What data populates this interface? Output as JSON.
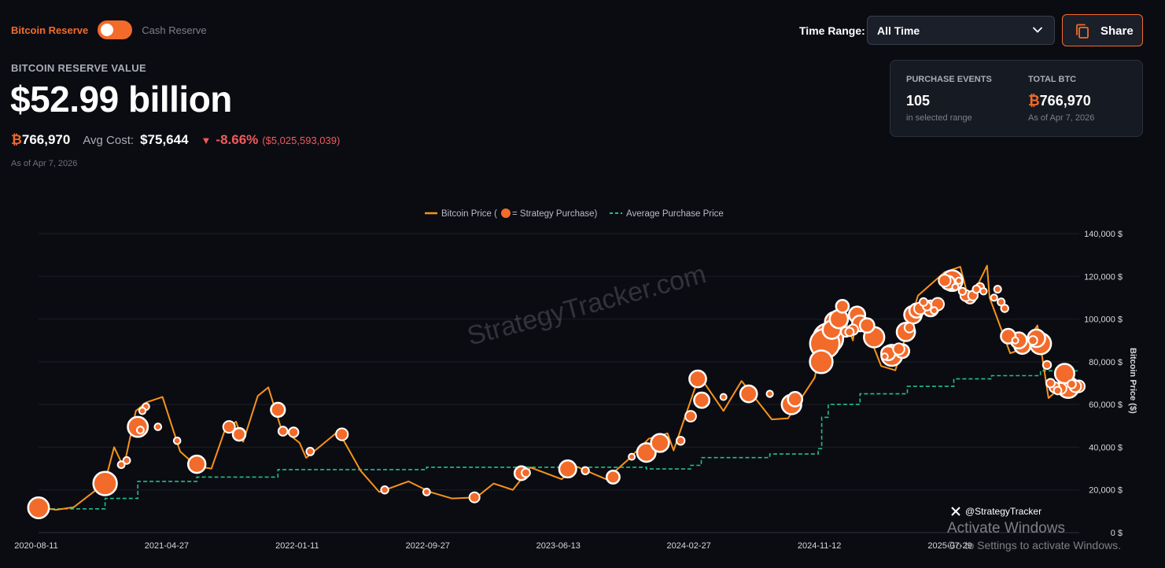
{
  "toggle": {
    "left_label": "Bitcoin Reserve",
    "right_label": "Cash Reserve",
    "on": true
  },
  "header": {
    "eyebrow": "BITCOIN RESERVE VALUE",
    "value": "$52.99 billion",
    "btc_symbol": "₿",
    "btc_amount": "766,970",
    "avg_cost_label": "Avg Cost:",
    "avg_cost_value": "$75,644",
    "change_icon": "down-triangle-icon",
    "change_pct": "-8.66%",
    "change_amount": "($5,025,593,039)",
    "as_of": "As of Apr 7, 2026"
  },
  "controls": {
    "time_range_label": "Time Range:",
    "time_range_value": "All Time",
    "share_label": "Share"
  },
  "stats_card": {
    "events_label": "PURCHASE EVENTS",
    "events_value": "105",
    "events_sub": "in selected range",
    "btc_label": "TOTAL BTC",
    "btc_symbol": "₿",
    "btc_value": "766,970",
    "btc_sub": "As of Apr 7, 2026"
  },
  "colors": {
    "accent": "#f26b2a",
    "price_line": "#f7931a",
    "avg_line": "#1fc08a",
    "negative": "#f05b5b",
    "bg": "#0b0c12"
  },
  "watermark": "StrategyTracker.com",
  "social": {
    "icon": "x-logo-icon",
    "handle": "@StrategyTracker"
  },
  "overlay": {
    "line1": "Activate Windows",
    "line2": "Go to Settings to activate Windows."
  },
  "chart_data": {
    "type": "line",
    "legend": [
      "Bitcoin Price (",
      " = Strategy Purchase)",
      "Average Purchase Price"
    ],
    "ylabel": "Bitcoin Price ($)",
    "ylim": [
      0,
      140000
    ],
    "y_ticks": [
      0,
      20000,
      40000,
      60000,
      80000,
      100000,
      120000,
      140000
    ],
    "y_tick_labels": [
      "0 $",
      "20,000 $",
      "40,000 $",
      "60,000 $",
      "80,000 $",
      "100,000 $",
      "120,000 $",
      "140,000 $"
    ],
    "x_range": [
      "2020-08-11",
      "2026-04-07"
    ],
    "x_ticks": [
      "2020-08-11",
      "2021-04-27",
      "2022-01-11",
      "2022-09-27",
      "2023-06-13",
      "2024-02-27",
      "2024-11-12",
      "2025-07-29"
    ],
    "grid": true,
    "legend_position": "top-center",
    "series": [
      {
        "name": "Bitcoin Price",
        "x": [
          "2020-08-11",
          "2020-09-15",
          "2020-10-20",
          "2020-11-25",
          "2020-12-20",
          "2021-01-08",
          "2021-01-27",
          "2021-02-20",
          "2021-03-13",
          "2021-04-14",
          "2021-05-19",
          "2021-06-21",
          "2021-07-20",
          "2021-08-15",
          "2021-09-07",
          "2021-09-21",
          "2021-10-20",
          "2021-11-10",
          "2021-12-05",
          "2022-01-11",
          "2022-01-24",
          "2022-03-29",
          "2022-05-12",
          "2022-06-18",
          "2022-08-15",
          "2022-09-27",
          "2022-11-09",
          "2022-12-28",
          "2023-01-31",
          "2023-03-10",
          "2023-04-14",
          "2023-06-15",
          "2023-07-14",
          "2023-09-11",
          "2023-10-24",
          "2023-12-05",
          "2024-01-11",
          "2024-01-23",
          "2024-03-14",
          "2024-05-01",
          "2024-06-06",
          "2024-08-05",
          "2024-09-06",
          "2024-10-29",
          "2024-11-12",
          "2024-12-17",
          "2025-01-13",
          "2025-01-22",
          "2025-03-10",
          "2025-04-07",
          "2025-05-22",
          "2025-07-14",
          "2025-08-14",
          "2025-09-01",
          "2025-10-06",
          "2025-10-11",
          "2025-11-21",
          "2025-12-15",
          "2026-01-14",
          "2026-02-05",
          "2026-03-10",
          "2026-04-07"
        ],
        "values": [
          11800,
          10700,
          11900,
          18500,
          23000,
          40000,
          30500,
          57000,
          61000,
          63500,
          38000,
          31000,
          30000,
          47500,
          52000,
          42500,
          64000,
          68000,
          49000,
          42000,
          35000,
          47500,
          29000,
          19000,
          24000,
          19000,
          16000,
          16500,
          23000,
          20000,
          30500,
          25000,
          31000,
          25000,
          34000,
          44000,
          46500,
          38500,
          73500,
          57000,
          71000,
          53000,
          53500,
          72500,
          88000,
          107000,
          90000,
          106000,
          78000,
          76000,
          111000,
          122000,
          124500,
          108000,
          125000,
          110000,
          84000,
          86000,
          97000,
          63000,
          70000,
          69000
        ]
      },
      {
        "name": "Average Purchase Price",
        "x": [
          "2020-08-11",
          "2020-12-21",
          "2021-02-24",
          "2021-06-21",
          "2021-11-29",
          "2022-09-20",
          "2023-11-30",
          "2024-02-26",
          "2024-03-18",
          "2024-08-01",
          "2024-11-05",
          "2024-11-12",
          "2024-11-25",
          "2025-01-27",
          "2025-05-01",
          "2025-08-01",
          "2025-10-15",
          "2026-01-20",
          "2026-04-07"
        ],
        "values": [
          11111,
          16000,
          24000,
          26000,
          29500,
          30600,
          29800,
          31500,
          35100,
          36800,
          39300,
          54000,
          60000,
          65000,
          68500,
          72000,
          73500,
          75800,
          75644
        ]
      }
    ],
    "purchases": [
      {
        "x": "2020-08-11",
        "y": 11600,
        "btc": 21454
      },
      {
        "x": "2020-12-21",
        "y": 23000,
        "btc": 29646
      },
      {
        "x": "2021-01-22",
        "y": 31800,
        "btc": 314
      },
      {
        "x": "2021-02-02",
        "y": 33800,
        "btc": 295
      },
      {
        "x": "2021-02-24",
        "y": 49500,
        "btc": 19452
      },
      {
        "x": "2021-03-01",
        "y": 48000,
        "btc": 328
      },
      {
        "x": "2021-03-05",
        "y": 57000,
        "btc": 205
      },
      {
        "x": "2021-03-12",
        "y": 59000,
        "btc": 262
      },
      {
        "x": "2021-04-05",
        "y": 49500,
        "btc": 253
      },
      {
        "x": "2021-05-13",
        "y": 43000,
        "btc": 271
      },
      {
        "x": "2021-06-21",
        "y": 32000,
        "btc": 13005
      },
      {
        "x": "2021-08-24",
        "y": 49500,
        "btc": 3907
      },
      {
        "x": "2021-09-13",
        "y": 46000,
        "btc": 5050
      },
      {
        "x": "2021-11-29",
        "y": 57500,
        "btc": 7002
      },
      {
        "x": "2021-12-09",
        "y": 47500,
        "btc": 1434
      },
      {
        "x": "2021-12-30",
        "y": 47000,
        "btc": 1914
      },
      {
        "x": "2022-02-01",
        "y": 38000,
        "btc": 660
      },
      {
        "x": "2022-04-05",
        "y": 46000,
        "btc": 4167
      },
      {
        "x": "2022-06-29",
        "y": 20000,
        "btc": 480
      },
      {
        "x": "2022-09-20",
        "y": 19000,
        "btc": 301
      },
      {
        "x": "2022-12-24",
        "y": 16500,
        "btc": 2395
      },
      {
        "x": "2023-03-27",
        "y": 27800,
        "btc": 6455
      },
      {
        "x": "2023-04-05",
        "y": 28000,
        "btc": 1045
      },
      {
        "x": "2023-06-27",
        "y": 29800,
        "btc": 12333
      },
      {
        "x": "2023-08-01",
        "y": 29000,
        "btc": 467
      },
      {
        "x": "2023-09-25",
        "y": 26000,
        "btc": 5445
      },
      {
        "x": "2023-11-01",
        "y": 35500,
        "btc": 155
      },
      {
        "x": "2023-11-30",
        "y": 37500,
        "btc": 16130
      },
      {
        "x": "2023-12-27",
        "y": 42000,
        "btc": 14620
      },
      {
        "x": "2024-02-06",
        "y": 43000,
        "btc": 850
      },
      {
        "x": "2024-02-26",
        "y": 54500,
        "btc": 3000
      },
      {
        "x": "2024-03-11",
        "y": 72000,
        "btc": 12000
      },
      {
        "x": "2024-03-19",
        "y": 62000,
        "btc": 9245
      },
      {
        "x": "2024-05-01",
        "y": 63500,
        "btc": 122
      },
      {
        "x": "2024-06-20",
        "y": 65000,
        "btc": 11931
      },
      {
        "x": "2024-08-01",
        "y": 65000,
        "btc": 169
      },
      {
        "x": "2024-09-13",
        "y": 60000,
        "btc": 18300
      },
      {
        "x": "2024-09-20",
        "y": 62500,
        "btc": 7420
      },
      {
        "x": "2024-11-11",
        "y": 80000,
        "btc": 27200
      },
      {
        "x": "2024-11-18",
        "y": 88500,
        "btc": 51780
      },
      {
        "x": "2024-11-25",
        "y": 91000,
        "btc": 55500
      },
      {
        "x": "2024-12-02",
        "y": 95000,
        "btc": 15400
      },
      {
        "x": "2024-12-09",
        "y": 98500,
        "btc": 21550
      },
      {
        "x": "2024-12-16",
        "y": 100000,
        "btc": 15350
      },
      {
        "x": "2024-12-23",
        "y": 106000,
        "btc": 5262
      },
      {
        "x": "2024-12-30",
        "y": 94000,
        "btc": 2138
      },
      {
        "x": "2025-01-06",
        "y": 94000,
        "btc": 1070
      },
      {
        "x": "2025-01-13",
        "y": 95000,
        "btc": 2530
      },
      {
        "x": "2025-01-21",
        "y": 102000,
        "btc": 11000
      },
      {
        "x": "2025-01-27",
        "y": 98000,
        "btc": 10107
      },
      {
        "x": "2025-02-10",
        "y": 97000,
        "btc": 7633
      },
      {
        "x": "2025-02-24",
        "y": 91500,
        "btc": 20356
      },
      {
        "x": "2025-03-17",
        "y": 82500,
        "btc": 130
      },
      {
        "x": "2025-03-24",
        "y": 84000,
        "btc": 6911
      },
      {
        "x": "2025-03-31",
        "y": 83000,
        "btc": 22048
      },
      {
        "x": "2025-04-14",
        "y": 86000,
        "btc": 3459
      },
      {
        "x": "2025-04-21",
        "y": 85000,
        "btc": 6556
      },
      {
        "x": "2025-04-28",
        "y": 94000,
        "btc": 15355
      },
      {
        "x": "2025-05-05",
        "y": 96000,
        "btc": 1895
      },
      {
        "x": "2025-05-12",
        "y": 102000,
        "btc": 13390
      },
      {
        "x": "2025-05-19",
        "y": 104000,
        "btc": 7390
      },
      {
        "x": "2025-05-26",
        "y": 105000,
        "btc": 4020
      },
      {
        "x": "2025-06-02",
        "y": 108000,
        "btc": 705
      },
      {
        "x": "2025-06-09",
        "y": 106000,
        "btc": 1045
      },
      {
        "x": "2025-06-16",
        "y": 105000,
        "btc": 10100
      },
      {
        "x": "2025-06-23",
        "y": 104000,
        "btc": 245
      },
      {
        "x": "2025-06-30",
        "y": 107000,
        "btc": 4980
      },
      {
        "x": "2025-07-14",
        "y": 118000,
        "btc": 4225
      },
      {
        "x": "2025-07-21",
        "y": 117000,
        "btc": 6220
      },
      {
        "x": "2025-07-29",
        "y": 118000,
        "btc": 21021
      },
      {
        "x": "2025-08-04",
        "y": 115000,
        "btc": 21
      },
      {
        "x": "2025-08-11",
        "y": 118000,
        "btc": 155
      },
      {
        "x": "2025-08-18",
        "y": 113000,
        "btc": 430
      },
      {
        "x": "2025-08-25",
        "y": 111000,
        "btc": 3081
      },
      {
        "x": "2025-09-02",
        "y": 110000,
        "btc": 4048
      },
      {
        "x": "2025-09-08",
        "y": 111000,
        "btc": 1955
      },
      {
        "x": "2025-09-15",
        "y": 114000,
        "btc": 525
      },
      {
        "x": "2025-09-22",
        "y": 115000,
        "btc": 850
      },
      {
        "x": "2025-09-29",
        "y": 113000,
        "btc": 196
      },
      {
        "x": "2025-10-20",
        "y": 110000,
        "btc": 168
      },
      {
        "x": "2025-10-27",
        "y": 114000,
        "btc": 390
      },
      {
        "x": "2025-11-03",
        "y": 108000,
        "btc": 397
      },
      {
        "x": "2025-11-10",
        "y": 105000,
        "btc": 487
      },
      {
        "x": "2025-11-17",
        "y": 92000,
        "btc": 8178
      },
      {
        "x": "2025-12-01",
        "y": 90000,
        "btc": 130
      },
      {
        "x": "2025-12-08",
        "y": 90000,
        "btc": 10624
      },
      {
        "x": "2025-12-15",
        "y": 87500,
        "btc": 10645
      },
      {
        "x": "2026-01-05",
        "y": 90000,
        "btc": 1287
      },
      {
        "x": "2026-01-12",
        "y": 91000,
        "btc": 13627
      },
      {
        "x": "2026-01-20",
        "y": 88500,
        "btc": 22305
      },
      {
        "x": "2026-02-02",
        "y": 78500,
        "btc": 855
      },
      {
        "x": "2026-02-09",
        "y": 70000,
        "btc": 1142
      },
      {
        "x": "2026-02-17",
        "y": 68000,
        "btc": 2486
      },
      {
        "x": "2026-02-23",
        "y": 66500,
        "btc": 592
      },
      {
        "x": "2026-03-02",
        "y": 67500,
        "btc": 3015
      },
      {
        "x": "2026-03-09",
        "y": 74500,
        "btc": 17994
      },
      {
        "x": "2026-03-16",
        "y": 68000,
        "btc": 22337
      },
      {
        "x": "2026-03-23",
        "y": 69500,
        "btc": 1031
      },
      {
        "x": "2026-03-30",
        "y": 68500,
        "btc": 3759
      },
      {
        "x": "2026-04-06",
        "y": 68500,
        "btc": 4225
      }
    ]
  }
}
